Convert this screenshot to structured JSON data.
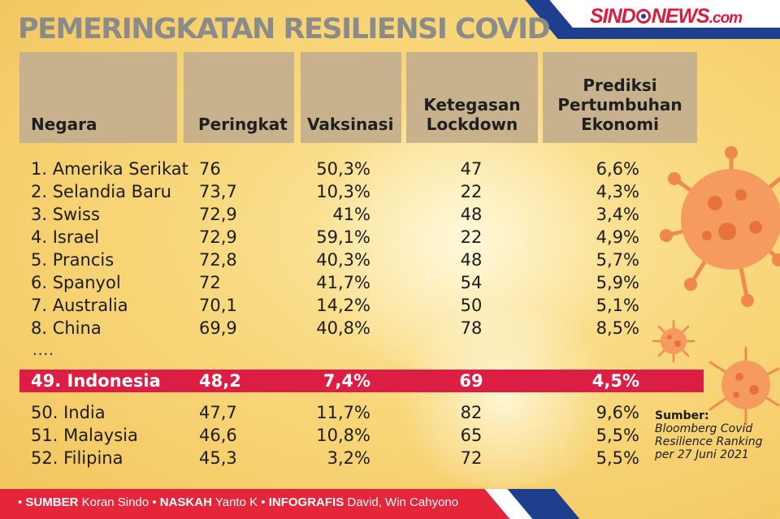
{
  "title": "PEMERINGKATAN RESILIENSI COVID",
  "logo": {
    "main": "SINDONEWS",
    "suffix": ".com"
  },
  "headers": {
    "negara": "Negara",
    "peringkat": "Peringkat",
    "vaksinasi": "Vaksinasi",
    "lockdown": "Ketegasan\nLockdown",
    "ekonomi": "Prediksi\nPertumbuhan\nEkonomi"
  },
  "rows": [
    {
      "negara": "1. Amerika Serikat",
      "peringkat": "76",
      "vaksinasi": "50,3%",
      "lockdown": "47",
      "ekonomi": "6,6%"
    },
    {
      "negara": "2. Selandia Baru",
      "peringkat": "73,7",
      "vaksinasi": "10,3%",
      "lockdown": "22",
      "ekonomi": "4,3%"
    },
    {
      "negara": "3. Swiss",
      "peringkat": "72,9",
      "vaksinasi": "41%",
      "lockdown": "48",
      "ekonomi": "3,4%"
    },
    {
      "negara": "4. Israel",
      "peringkat": "72,9",
      "vaksinasi": "59,1%",
      "lockdown": "22",
      "ekonomi": "4,9%"
    },
    {
      "negara": "5. Prancis",
      "peringkat": "72,8",
      "vaksinasi": "40,3%",
      "lockdown": "48",
      "ekonomi": "5,7%"
    },
    {
      "negara": "6. Spanyol",
      "peringkat": "72",
      "vaksinasi": "41,7%",
      "lockdown": "54",
      "ekonomi": "5,9%"
    },
    {
      "negara": "7. Australia",
      "peringkat": "70,1",
      "vaksinasi": "14,2%",
      "lockdown": "50",
      "ekonomi": "5,1%"
    },
    {
      "negara": "8. China",
      "peringkat": "69,9",
      "vaksinasi": "40,8%",
      "lockdown": "78",
      "ekonomi": "8,5%"
    }
  ],
  "ellipsis": "....",
  "highlight": {
    "negara": "49. Indonesia",
    "peringkat": "48,2",
    "vaksinasi": "7,4%",
    "lockdown": "69",
    "ekonomi": "4,5%"
  },
  "rows2": [
    {
      "negara": "50. India",
      "peringkat": "47,7",
      "vaksinasi": "11,7%",
      "lockdown": "82",
      "ekonomi": "9,6%"
    },
    {
      "negara": "51. Malaysia",
      "peringkat": "46,6",
      "vaksinasi": "10,8%",
      "lockdown": "65",
      "ekonomi": "5,5%"
    },
    {
      "negara": "52. Filipina",
      "peringkat": "45,3",
      "vaksinasi": "3,2%",
      "lockdown": "72",
      "ekonomi": "5,5%"
    }
  ],
  "source": {
    "label": "Sumber:",
    "text": "Bloomberg Covid\nResilience Ranking\nper 27 Juni 2021"
  },
  "credits": {
    "sumber_label": "SUMBER",
    "sumber": "Koran Sindo",
    "naskah_label": "NASKAH",
    "naskah": "Yanto K",
    "infografis_label": "INFOGRAFIS",
    "infografis": "David, Win Cahyono"
  },
  "colors": {
    "highlight": "#dc1d44",
    "header_box": "#c8b18d",
    "footer": "#e4253a",
    "brand_navy": "#1d3f8e"
  }
}
